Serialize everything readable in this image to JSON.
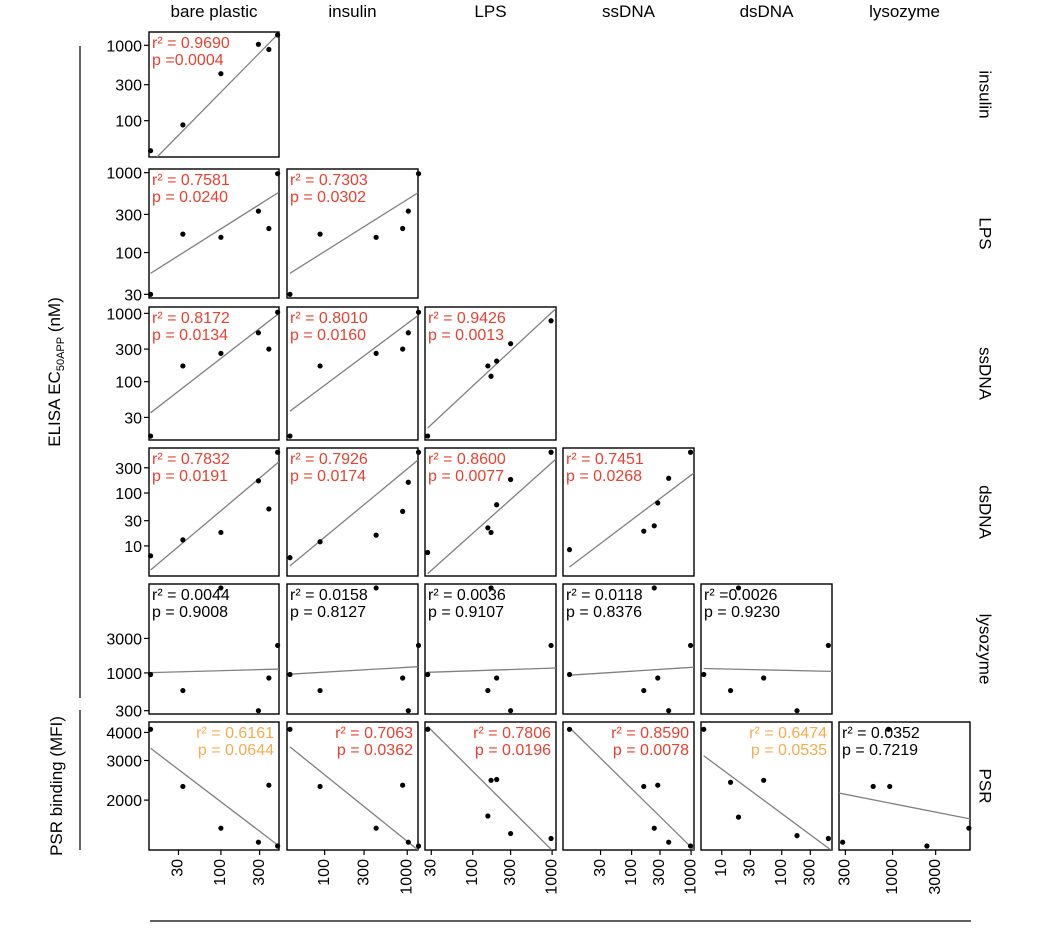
{
  "chart_data": {
    "type": "scatter",
    "x_variables": [
      "bare plastic",
      "insulin",
      "LPS",
      "ssDNA",
      "dsDNA",
      "lysozyme"
    ],
    "y_variables": [
      "insulin",
      "LPS",
      "ssDNA",
      "dsDNA",
      "lysozyme",
      "PSR"
    ],
    "ylabel_elisa": "ELISA EC",
    "ylabel_elisa_sub": "50APP",
    "ylabel_elisa_unit": " (nM)",
    "ylabel_psr": "PSR binding (MFI)",
    "log_scale": true,
    "grid": false,
    "colors": {
      "significant": "#e8412f",
      "marginal": "#f6ac4f",
      "nonsignificant": "#000000",
      "fit_line": "#808080",
      "points": "#000000"
    },
    "x_axis": {
      "bare plastic": {
        "range": [
          13,
          520
        ],
        "ticks": [
          "30",
          "100",
          "300"
        ],
        "tick_values": [
          30,
          100,
          300
        ]
      },
      "insulin": {
        "range": [
          35,
          1350
        ],
        "ticks": [
          "100",
          "300",
          "1000"
        ],
        "tick_values": [
          100,
          300,
          1000
        ]
      },
      "LPS": {
        "range": [
          25,
          1120
        ],
        "ticks": [
          "30",
          "100",
          "300",
          "1000"
        ],
        "tick_values": [
          30,
          100,
          300,
          1000
        ]
      },
      "ssDNA": {
        "range": [
          7,
          1120
        ],
        "ticks": [
          "30",
          "100",
          "300",
          "1000"
        ],
        "tick_values": [
          30,
          100,
          300,
          1000
        ]
      },
      "dsDNA": {
        "range": [
          4.5,
          690
        ],
        "ticks": [
          "10",
          "30",
          "100",
          "300"
        ],
        "tick_values": [
          10,
          30,
          100,
          300
        ]
      },
      "lysozyme": {
        "range": [
          255,
          7200
        ],
        "ticks": [
          "300",
          "1000",
          "3000"
        ],
        "tick_values": [
          300,
          1000,
          3000
        ]
      }
    },
    "y_axis": {
      "insulin": {
        "range": [
          33,
          1500
        ],
        "ticks": [
          "100",
          "300",
          "1000"
        ],
        "tick_values": [
          100,
          300,
          1000
        ]
      },
      "LPS": {
        "range": [
          27,
          1110
        ],
        "ticks": [
          "30",
          "100",
          "300",
          "1000"
        ],
        "tick_values": [
          30,
          100,
          300,
          1000
        ]
      },
      "ssDNA": {
        "range": [
          14,
          1240
        ],
        "ticks": [
          "30",
          "100",
          "300",
          "1000"
        ],
        "tick_values": [
          30,
          100,
          300,
          1000
        ]
      },
      "dsDNA": {
        "range": [
          2.7,
          710
        ],
        "ticks": [
          "10",
          "30",
          "100",
          "300"
        ],
        "tick_values": [
          10,
          30,
          100,
          300
        ]
      },
      "lysozyme": {
        "range": [
          270,
          17000
        ],
        "ticks": [
          "300",
          "1000",
          "3000"
        ],
        "tick_values": [
          300,
          1000,
          3000
        ]
      },
      "PSR": {
        "range": [
          1200,
          4450
        ],
        "ticks": [
          "2000",
          "3000",
          "4000"
        ],
        "tick_values": [
          2000,
          3000,
          4000
        ]
      }
    },
    "panels": [
      {
        "row": "insulin",
        "col": "bare plastic",
        "r2": "0.9690",
        "p": "0.0004",
        "r2_label": "r² = 0.9690",
        "p_label": "p =0.0004",
        "color": "#e8412f",
        "label_pos": "left",
        "points": [
          [
            13.6,
            40
          ],
          [
            34,
            88
          ],
          [
            100,
            420
          ],
          [
            290,
            1030
          ],
          [
            390,
            880
          ],
          [
            500,
            1370
          ]
        ],
        "line": [
          [
            13.6,
            27
          ],
          [
            520,
            1450
          ]
        ]
      },
      {
        "row": "LPS",
        "col": "bare plastic",
        "r2": "0.7581",
        "p": "0.0240",
        "r2_label": "r² = 0.7581",
        "p_label": "p = 0.0240",
        "color": "#e8412f",
        "label_pos": "left",
        "points": [
          [
            13.6,
            30
          ],
          [
            34,
            170
          ],
          [
            100,
            155
          ],
          [
            290,
            330
          ],
          [
            390,
            200
          ],
          [
            500,
            970
          ]
        ],
        "line": [
          [
            13.6,
            55
          ],
          [
            520,
            570
          ]
        ]
      },
      {
        "row": "LPS",
        "col": "insulin",
        "r2": "0.7303",
        "p": "0.0302",
        "r2_label": "r² = 0.7303",
        "p_label": "p = 0.0302",
        "color": "#e8412f",
        "label_pos": "left",
        "points": [
          [
            38,
            30
          ],
          [
            88,
            170
          ],
          [
            420,
            155
          ],
          [
            880,
            200
          ],
          [
            1030,
            330
          ],
          [
            1370,
            970
          ]
        ],
        "line": [
          [
            38,
            55
          ],
          [
            1350,
            560
          ]
        ]
      },
      {
        "row": "ssDNA",
        "col": "bare plastic",
        "r2": "0.8172",
        "p": "0.0134",
        "r2_label": "r² = 0.8172",
        "p_label": "p = 0.0134",
        "color": "#e8412f",
        "label_pos": "left",
        "points": [
          [
            13.6,
            16
          ],
          [
            34,
            170
          ],
          [
            100,
            260
          ],
          [
            290,
            520
          ],
          [
            390,
            300
          ],
          [
            500,
            1040
          ]
        ],
        "line": [
          [
            13.6,
            35
          ],
          [
            520,
            1000
          ]
        ]
      },
      {
        "row": "ssDNA",
        "col": "insulin",
        "r2": "0.8010",
        "p": "0.0160",
        "r2_label": "r² = 0.8010",
        "p_label": "p = 0.0160",
        "color": "#e8412f",
        "label_pos": "left",
        "points": [
          [
            38,
            16
          ],
          [
            88,
            170
          ],
          [
            420,
            260
          ],
          [
            880,
            300
          ],
          [
            1030,
            520
          ],
          [
            1370,
            1040
          ]
        ],
        "line": [
          [
            38,
            37
          ],
          [
            1350,
            930
          ]
        ]
      },
      {
        "row": "ssDNA",
        "col": "LPS",
        "r2": "0.9426",
        "p": "0.0013",
        "r2_label": "r² = 0.9426",
        "p_label": "p = 0.0013",
        "color": "#e8412f",
        "label_pos": "left",
        "points": [
          [
            27,
            16
          ],
          [
            155,
            170
          ],
          [
            170,
            120
          ],
          [
            200,
            200
          ],
          [
            300,
            360
          ],
          [
            970,
            780
          ]
        ],
        "line": [
          [
            27,
            21
          ],
          [
            1120,
            1180
          ]
        ]
      },
      {
        "row": "dsDNA",
        "col": "bare plastic",
        "r2": "0.7832",
        "p": "0.0191",
        "r2_label": "r² = 0.7832",
        "p_label": "p = 0.0191",
        "color": "#e8412f",
        "label_pos": "left",
        "points": [
          [
            13.6,
            6.5
          ],
          [
            34,
            13
          ],
          [
            100,
            18
          ],
          [
            290,
            170
          ],
          [
            390,
            50
          ],
          [
            500,
            590
          ]
        ],
        "line": [
          [
            13.6,
            3.5
          ],
          [
            520,
            390
          ]
        ]
      },
      {
        "row": "dsDNA",
        "col": "insulin",
        "r2": "0.7926",
        "p": "0.0174",
        "r2_label": "r² = 0.7926",
        "p_label": "p = 0.0174",
        "color": "#e8412f",
        "label_pos": "left",
        "points": [
          [
            38,
            6
          ],
          [
            88,
            12
          ],
          [
            420,
            16
          ],
          [
            880,
            45
          ],
          [
            1030,
            160
          ],
          [
            1370,
            590
          ]
        ],
        "line": [
          [
            38,
            4.2
          ],
          [
            1350,
            420
          ]
        ]
      },
      {
        "row": "dsDNA",
        "col": "LPS",
        "r2": "0.8600",
        "p": "0.0077",
        "r2_label": "r² = 0.8600",
        "p_label": "p = 0.0077",
        "color": "#e8412f",
        "label_pos": "left",
        "points": [
          [
            27,
            7.5
          ],
          [
            155,
            22
          ],
          [
            170,
            18
          ],
          [
            200,
            60
          ],
          [
            300,
            180
          ],
          [
            970,
            590
          ]
        ],
        "line": [
          [
            27,
            3.0
          ],
          [
            1120,
            440
          ]
        ]
      },
      {
        "row": "dsDNA",
        "col": "ssDNA",
        "r2": "0.7451",
        "p": "0.0268",
        "r2_label": "r² = 0.7451",
        "p_label": "p = 0.0268",
        "color": "#e8412f",
        "label_pos": "left",
        "points": [
          [
            9,
            8.5
          ],
          [
            160,
            19
          ],
          [
            240,
            24
          ],
          [
            275,
            65
          ],
          [
            420,
            190
          ],
          [
            980,
            590
          ]
        ],
        "line": [
          [
            9,
            4.0
          ],
          [
            1120,
            240
          ]
        ]
      },
      {
        "row": "lysozyme",
        "col": "bare plastic",
        "r2": "0.0044",
        "p": "0.9008",
        "r2_label": "r² = 0.0044",
        "p_label": "p = 0.9008",
        "color": "#000000",
        "label_pos": "left",
        "points": [
          [
            13.6,
            950
          ],
          [
            34,
            570
          ],
          [
            100,
            15000
          ],
          [
            290,
            300
          ],
          [
            390,
            850
          ],
          [
            500,
            2400
          ]
        ],
        "line": [
          [
            13.6,
            1010
          ],
          [
            520,
            1130
          ]
        ]
      },
      {
        "row": "lysozyme",
        "col": "insulin",
        "r2": "0.0158",
        "p": "0.8127",
        "r2_label": "r² = 0.0158",
        "p_label": "p = 0.8127",
        "color": "#000000",
        "label_pos": "left",
        "points": [
          [
            38,
            950
          ],
          [
            88,
            570
          ],
          [
            420,
            15000
          ],
          [
            880,
            850
          ],
          [
            1030,
            300
          ],
          [
            1370,
            2400
          ]
        ],
        "line": [
          [
            38,
            960
          ],
          [
            1350,
            1220
          ]
        ]
      },
      {
        "row": "lysozyme",
        "col": "LPS",
        "r2": "0.0036",
        "p": "0.9107",
        "r2_label": "r² = 0.0036",
        "p_label": "p = 0.9107",
        "color": "#000000",
        "label_pos": "left",
        "points": [
          [
            27,
            950
          ],
          [
            155,
            570
          ],
          [
            170,
            15000
          ],
          [
            200,
            850
          ],
          [
            300,
            300
          ],
          [
            970,
            2400
          ]
        ],
        "line": [
          [
            27,
            1020
          ],
          [
            1120,
            1170
          ]
        ]
      },
      {
        "row": "lysozyme",
        "col": "ssDNA",
        "r2": "0.0118",
        "p": "0.8376",
        "r2_label": "r² = 0.0118",
        "p_label": "p = 0.8376",
        "color": "#000000",
        "label_pos": "left",
        "points": [
          [
            9,
            950
          ],
          [
            160,
            570
          ],
          [
            240,
            15000
          ],
          [
            275,
            850
          ],
          [
            420,
            300
          ],
          [
            980,
            2400
          ]
        ],
        "line": [
          [
            9,
            930
          ],
          [
            1120,
            1200
          ]
        ]
      },
      {
        "row": "lysozyme",
        "col": "dsDNA",
        "r2": "0.0026",
        "p": "0.9230",
        "r2_label": "r² =0.0026",
        "p_label": "p = 0.9230",
        "color": "#000000",
        "label_pos": "left",
        "points": [
          [
            5,
            950
          ],
          [
            14,
            570
          ],
          [
            19,
            15000
          ],
          [
            50,
            850
          ],
          [
            180,
            300
          ],
          [
            600,
            2400
          ]
        ],
        "line": [
          [
            5,
            1150
          ],
          [
            690,
            1050
          ]
        ]
      },
      {
        "row": "PSR",
        "col": "bare plastic",
        "r2": "0.6161",
        "p": "0.0644",
        "r2_label": "r² = 0.6161",
        "p_label": "p = 0.0644",
        "color": "#f6ac4f",
        "label_pos": "right",
        "points": [
          [
            13.6,
            4130
          ],
          [
            34,
            2300
          ],
          [
            100,
            1500
          ],
          [
            290,
            1300
          ],
          [
            390,
            2330
          ],
          [
            500,
            1250
          ]
        ],
        "line": [
          [
            13.6,
            3400
          ],
          [
            520,
            1250
          ]
        ]
      },
      {
        "row": "PSR",
        "col": "insulin",
        "r2": "0.7063",
        "p": "0.0362",
        "r2_label": "r² = 0.7063",
        "p_label": "p = 0.0362",
        "color": "#e8412f",
        "label_pos": "right",
        "points": [
          [
            38,
            4130
          ],
          [
            88,
            2300
          ],
          [
            420,
            1500
          ],
          [
            880,
            2330
          ],
          [
            1030,
            1300
          ],
          [
            1370,
            1250
          ]
        ],
        "line": [
          [
            38,
            3450
          ],
          [
            1350,
            1200
          ]
        ]
      },
      {
        "row": "PSR",
        "col": "LPS",
        "r2": "0.7806",
        "p": "0.0196",
        "r2_label": "r² = 0.7806",
        "p_label": "p = 0.0196",
        "color": "#e8412f",
        "label_pos": "right",
        "points": [
          [
            27,
            4130
          ],
          [
            155,
            1700
          ],
          [
            170,
            2450
          ],
          [
            200,
            2470
          ],
          [
            300,
            1420
          ],
          [
            970,
            1350
          ]
        ],
        "line": [
          [
            27,
            4250
          ],
          [
            1120,
            1150
          ]
        ]
      },
      {
        "row": "PSR",
        "col": "ssDNA",
        "r2": "0.8590",
        "p": "0.0078",
        "r2_label": "r² = 0.8590",
        "p_label": "p = 0.0078",
        "color": "#e8412f",
        "label_pos": "right",
        "points": [
          [
            9,
            4130
          ],
          [
            160,
            2300
          ],
          [
            240,
            1500
          ],
          [
            275,
            2330
          ],
          [
            420,
            1300
          ],
          [
            980,
            1250
          ]
        ],
        "line": [
          [
            9,
            4200
          ],
          [
            1120,
            1200
          ]
        ]
      },
      {
        "row": "PSR",
        "col": "dsDNA",
        "r2": "0.6474",
        "p": "0.0535",
        "r2_label": "r² = 0.6474",
        "p_label": "p = 0.0535",
        "color": "#f6ac4f",
        "label_pos": "right",
        "points": [
          [
            5,
            4130
          ],
          [
            14,
            2400
          ],
          [
            19,
            1680
          ],
          [
            50,
            2450
          ],
          [
            180,
            1390
          ],
          [
            600,
            1350
          ]
        ],
        "line": [
          [
            5,
            3150
          ],
          [
            690,
            1190
          ]
        ]
      },
      {
        "row": "PSR",
        "col": "lysozyme",
        "r2": "0.0352",
        "p": "0.7219",
        "r2_label": "r² = 0.0352",
        "p_label": "p = 0.7219",
        "color": "#000000",
        "label_pos": "left",
        "points": [
          [
            280,
            1300
          ],
          [
            610,
            2300
          ],
          [
            900,
            4130
          ],
          [
            930,
            2300
          ],
          [
            2400,
            1250
          ],
          [
            7000,
            1500
          ]
        ],
        "line": [
          [
            255,
            2150
          ],
          [
            7200,
            1650
          ]
        ]
      }
    ]
  }
}
